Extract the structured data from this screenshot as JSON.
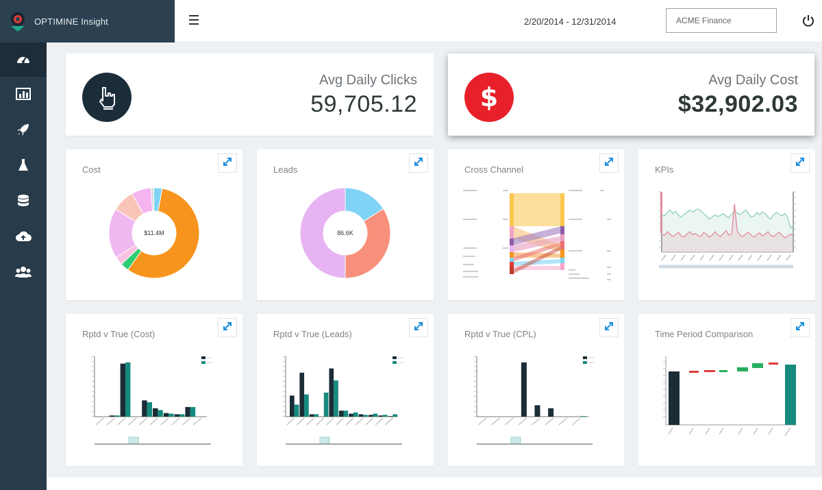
{
  "header": {
    "brand": "OPTIMINE Insight",
    "date_range": "2/20/2014 - 12/31/2014",
    "account": "ACME Finance"
  },
  "sidebar": {
    "items": [
      {
        "icon": "dashboard-icon",
        "active": true
      },
      {
        "icon": "bar-chart-icon",
        "active": false
      },
      {
        "icon": "rocket-icon",
        "active": false
      },
      {
        "icon": "flask-icon",
        "active": false
      },
      {
        "icon": "database-icon",
        "active": false
      },
      {
        "icon": "cloud-upload-icon",
        "active": false
      },
      {
        "icon": "users-icon",
        "active": false
      }
    ]
  },
  "kpis": [
    {
      "label": "Avg Daily Clicks",
      "value": "59,705.12",
      "icon": "pointer-hand-icon",
      "color": "#1c2d3a"
    },
    {
      "label": "Avg Daily Cost",
      "value": "$32,902.03",
      "icon": "dollar-icon",
      "color": "#e8202a"
    }
  ],
  "widgets": {
    "cost": {
      "title": "Cost",
      "center_label": "$11.4M",
      "slices": [
        {
          "value": 57,
          "color": "#f7941d"
        },
        {
          "value": 3,
          "color": "#2ecc71"
        },
        {
          "value": 3,
          "color": "#f9c0e0"
        },
        {
          "value": 18,
          "color": "#f0b8f0"
        },
        {
          "value": 8,
          "color": "#f8c5b8"
        },
        {
          "value": 7,
          "color": "#f5b3f0"
        },
        {
          "value": 1,
          "color": "#d8d8d8"
        },
        {
          "value": 3,
          "color": "#7fd3f5"
        }
      ]
    },
    "leads": {
      "title": "Leads",
      "center_label": "86.6K",
      "slices": [
        {
          "value": 16,
          "color": "#7fd3f5"
        },
        {
          "value": 34,
          "color": "#f7907a"
        },
        {
          "value": 50,
          "color": "#e7b3f2"
        }
      ]
    },
    "cross_channel": {
      "title": "Cross Channel"
    },
    "kpis_chart": {
      "title": "KPIs",
      "series": [
        {
          "color": "#8fcfb9",
          "values": [
            62,
            60,
            66,
            70,
            64,
            68,
            61,
            58,
            63,
            66,
            70,
            67,
            69,
            72,
            68,
            64,
            60,
            55,
            58,
            62,
            59,
            61,
            64,
            60,
            57,
            63,
            68,
            65,
            62,
            66,
            70,
            64,
            58,
            60,
            66,
            62,
            67,
            64,
            58,
            55,
            62,
            66,
            63,
            60,
            64,
            58,
            40,
            44
          ]
        },
        {
          "color": "#e58a9e",
          "values": [
            30,
            28,
            34,
            30,
            26,
            29,
            33,
            27,
            25,
            30,
            34,
            29,
            31,
            28,
            26,
            33,
            30,
            25,
            28,
            34,
            29,
            26,
            31,
            36,
            28,
            30,
            80,
            35,
            28,
            26,
            30,
            33,
            28,
            25,
            29,
            32,
            27,
            30,
            34,
            28,
            26,
            30,
            33,
            28,
            24,
            27,
            30,
            28
          ]
        }
      ]
    },
    "rptd_cost": {
      "title": "Rptd v True (Cost)",
      "categories": [
        "c1",
        "c2",
        "c3",
        "c4",
        "c5",
        "c6",
        "c7",
        "c8",
        "c9",
        "c10"
      ],
      "series": [
        {
          "name": "Reported",
          "color": "#1b2d36",
          "values": [
            0,
            2,
            88,
            0,
            27,
            14,
            6,
            4,
            16,
            0
          ]
        },
        {
          "name": "True",
          "color": "#168a7f",
          "values": [
            0,
            2,
            90,
            0,
            24,
            11,
            5,
            4,
            16,
            0
          ]
        }
      ]
    },
    "rptd_leads": {
      "title": "Rptd v True (Leads)",
      "categories": [
        "c1",
        "c2",
        "c3",
        "c4",
        "c5",
        "c6",
        "c7",
        "c8",
        "c9",
        "c10",
        "c11"
      ],
      "series": [
        {
          "name": "Reported",
          "color": "#1b2d36",
          "values": [
            35,
            73,
            4,
            0,
            80,
            10,
            5,
            4,
            3,
            2,
            1
          ]
        },
        {
          "name": "True",
          "color": "#168a7f",
          "values": [
            20,
            37,
            4,
            40,
            60,
            10,
            7,
            3,
            5,
            3,
            4
          ]
        }
      ]
    },
    "rptd_cpl": {
      "title": "Rptd v True (CPL)",
      "categories": [
        "c1",
        "c2",
        "c3",
        "c4",
        "c5",
        "c6",
        "c7",
        "c8"
      ],
      "series": [
        {
          "name": "Reported",
          "color": "#1b2d36",
          "values": [
            0,
            0,
            0,
            90,
            19,
            14,
            0,
            0
          ]
        },
        {
          "name": "True",
          "color": "#168a7f",
          "values": [
            0,
            0,
            0,
            0,
            0,
            0,
            0,
            1
          ]
        }
      ]
    },
    "time_period": {
      "title": "Time Period Comparison"
    }
  },
  "colors": {
    "sidebar": "#273b4a",
    "accent": "#1c8fdc",
    "reported": "#1b2d36",
    "true": "#168a7f"
  }
}
